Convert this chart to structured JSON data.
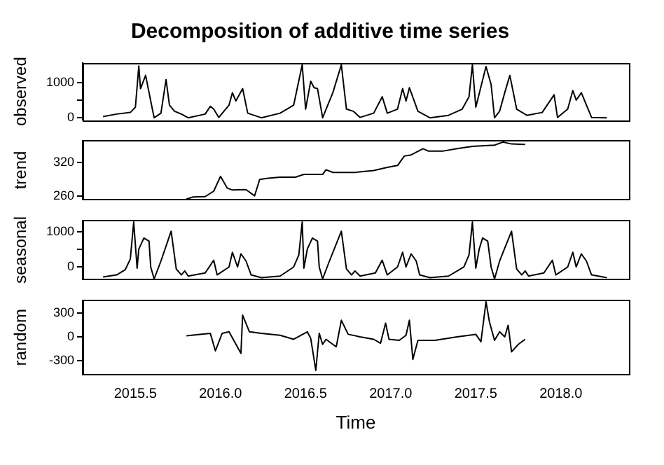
{
  "chart_data": [
    {
      "type": "line",
      "title": "Decomposition of additive time series",
      "ylabel": "observed",
      "color": "#000000",
      "tick_labels": "y",
      "xlim": [
        2015.19,
        2018.4
      ],
      "ylim": [
        -60,
        1550
      ],
      "yticks": [
        0,
        {
          "value": 500,
          "label": null
        },
        1000
      ],
      "x": [
        2015.31,
        2015.39,
        2015.47,
        2015.5,
        2015.52,
        2015.53,
        2015.56,
        2015.59,
        2015.61,
        2015.65,
        2015.68,
        2015.7,
        2015.73,
        2015.77,
        2015.81,
        2015.91,
        2015.94,
        2015.96,
        2015.99,
        2016.05,
        2016.07,
        2016.09,
        2016.13,
        2016.16,
        2016.24,
        2016.35,
        2016.43,
        2016.48,
        2016.5,
        2016.53,
        2016.55,
        2016.57,
        2016.6,
        2016.66,
        2016.71,
        2016.74,
        2016.78,
        2016.82,
        2016.9,
        2016.95,
        2016.98,
        2017.04,
        2017.07,
        2017.09,
        2017.11,
        2017.16,
        2017.23,
        2017.34,
        2017.42,
        2017.46,
        2017.48,
        2017.5,
        2017.56,
        2017.59,
        2017.61,
        2017.64,
        2017.67,
        2017.7,
        2017.74,
        2017.8,
        2017.89,
        2017.96,
        2017.98,
        2018.04,
        2018.07,
        2018.09,
        2018.12,
        2018.18,
        2018.27
      ],
      "values": [
        35,
        105,
        150,
        300,
        1465,
        825,
        1200,
        475,
        0,
        130,
        1080,
        360,
        185,
        105,
        0,
        105,
        325,
        245,
        10,
        360,
        710,
        475,
        825,
        130,
        0,
        130,
        360,
        1500,
        245,
        1035,
        850,
        825,
        0,
        710,
        1500,
        245,
        185,
        10,
        130,
        595,
        130,
        245,
        825,
        475,
        850,
        185,
        0,
        70,
        245,
        595,
        1500,
        300,
        1450,
        940,
        0,
        185,
        710,
        1200,
        245,
        70,
        150,
        650,
        10,
        245,
        770,
        500,
        710,
        10,
        0
      ]
    },
    {
      "type": "line",
      "ylabel": "trend",
      "color": "#000000",
      "tick_labels": "y",
      "xlim": [
        2015.19,
        2018.4
      ],
      "ylim": [
        253,
        360
      ],
      "yticks": [
        260,
        320
      ],
      "x": [
        2015.8,
        2015.84,
        2015.91,
        2015.96,
        2016.0,
        2016.04,
        2016.07,
        2016.15,
        2016.2,
        2016.23,
        2016.28,
        2016.35,
        2016.44,
        2016.49,
        2016.6,
        2016.62,
        2016.66,
        2016.79,
        2016.9,
        2016.98,
        2017.04,
        2017.08,
        2017.12,
        2017.19,
        2017.22,
        2017.31,
        2017.39,
        2017.48,
        2017.61,
        2017.66,
        2017.71,
        2017.79
      ],
      "values": [
        254.3,
        258,
        258.6,
        268.5,
        295.3,
        274,
        270.6,
        271.3,
        260,
        289.6,
        291.8,
        293.9,
        293.9,
        298.8,
        298.8,
        307.3,
        302.4,
        302.4,
        305.9,
        311.5,
        315,
        332,
        334.1,
        345.4,
        341.2,
        341.2,
        345.4,
        349.7,
        351.8,
        357.4,
        353.9,
        353.2
      ]
    },
    {
      "type": "line",
      "ylabel": "seasonal",
      "color": "#000000",
      "tick_labels": "y",
      "xlim": [
        2015.19,
        2018.4
      ],
      "ylim": [
        -360,
        1330
      ],
      "yticks": [
        0,
        {
          "value": 500,
          "label": null
        },
        1000
      ],
      "x": [
        2015.31,
        2015.39,
        2015.44,
        2015.47,
        2015.49,
        2015.51,
        2015.52,
        2015.55,
        2015.58,
        2015.59,
        2015.61,
        2015.65,
        2015.71,
        2015.74,
        2015.77,
        2015.79,
        2015.81,
        2015.91,
        2015.96,
        2015.98,
        2016.05,
        2016.07,
        2016.1,
        2016.12,
        2016.15,
        2016.18,
        2016.24,
        2016.35,
        2016.43,
        2016.46,
        2016.48,
        2016.49,
        2016.51,
        2016.54,
        2016.57,
        2016.58,
        2016.6,
        2016.64,
        2016.71,
        2016.74,
        2016.77,
        2016.79,
        2016.82,
        2016.91,
        2016.95,
        2016.98,
        2017.04,
        2017.07,
        2017.09,
        2017.12,
        2017.15,
        2017.17,
        2017.23,
        2017.34,
        2017.43,
        2017.46,
        2017.48,
        2017.5,
        2017.52,
        2017.54,
        2017.57,
        2017.59,
        2017.61,
        2017.64,
        2017.71,
        2017.74,
        2017.77,
        2017.79,
        2017.81,
        2017.9,
        2017.95,
        2017.97,
        2018.04,
        2018.07,
        2018.09,
        2018.12,
        2018.15,
        2018.18,
        2018.27
      ],
      "values": [
        -284,
        -227,
        -80,
        227,
        1284,
        -34,
        511,
        829,
        738,
        0,
        -341,
        170,
        1022,
        -57,
        -227,
        -114,
        -261,
        -170,
        193,
        -227,
        0,
        420,
        0,
        375,
        170,
        -227,
        -307,
        -261,
        0,
        341,
        1284,
        -34,
        511,
        829,
        738,
        0,
        -341,
        170,
        1022,
        -57,
        -227,
        -114,
        -261,
        -170,
        193,
        -227,
        0,
        420,
        0,
        375,
        170,
        -227,
        -307,
        -261,
        0,
        341,
        1284,
        -34,
        511,
        829,
        738,
        0,
        -341,
        170,
        1022,
        -57,
        -227,
        -114,
        -261,
        -170,
        193,
        -227,
        0,
        420,
        0,
        375,
        170,
        -227,
        -307
      ]
    },
    {
      "type": "line",
      "ylabel": "random",
      "xlabel": "Time",
      "color": "#000000",
      "xlim": [
        2015.19,
        2018.4
      ],
      "xticks": [
        2015.5,
        {
          "value": 2016,
          "label": "2016.0"
        },
        2016.5,
        {
          "value": 2017,
          "label": "2017.0"
        },
        2017.5,
        {
          "value": 2018,
          "label": "2018.0"
        }
      ],
      "ylim": [
        -470,
        455
      ],
      "yticks": [
        -300,
        0,
        300
      ],
      "x": [
        2015.8,
        2015.94,
        2015.97,
        2016.01,
        2016.05,
        2016.12,
        2016.13,
        2016.17,
        2016.24,
        2016.35,
        2016.43,
        2016.51,
        2016.53,
        2016.56,
        2016.58,
        2016.6,
        2016.62,
        2016.66,
        2016.68,
        2016.71,
        2016.75,
        2016.82,
        2016.9,
        2016.94,
        2016.97,
        2016.99,
        2017.05,
        2017.09,
        2017.11,
        2017.13,
        2017.16,
        2017.26,
        2017.39,
        2017.5,
        2017.53,
        2017.56,
        2017.58,
        2017.61,
        2017.64,
        2017.67,
        2017.69,
        2017.71,
        2017.75,
        2017.79
      ],
      "values": [
        12,
        44,
        -175,
        44,
        62,
        -206,
        269,
        62,
        44,
        19,
        -31,
        62,
        -19,
        -419,
        44,
        -94,
        -31,
        -94,
        -125,
        206,
        31,
        0,
        -31,
        -81,
        169,
        -31,
        -44,
        19,
        206,
        -281,
        -44,
        -44,
        0,
        31,
        -62,
        437,
        187,
        -44,
        62,
        0,
        144,
        -187,
        -94,
        -31
      ]
    }
  ]
}
